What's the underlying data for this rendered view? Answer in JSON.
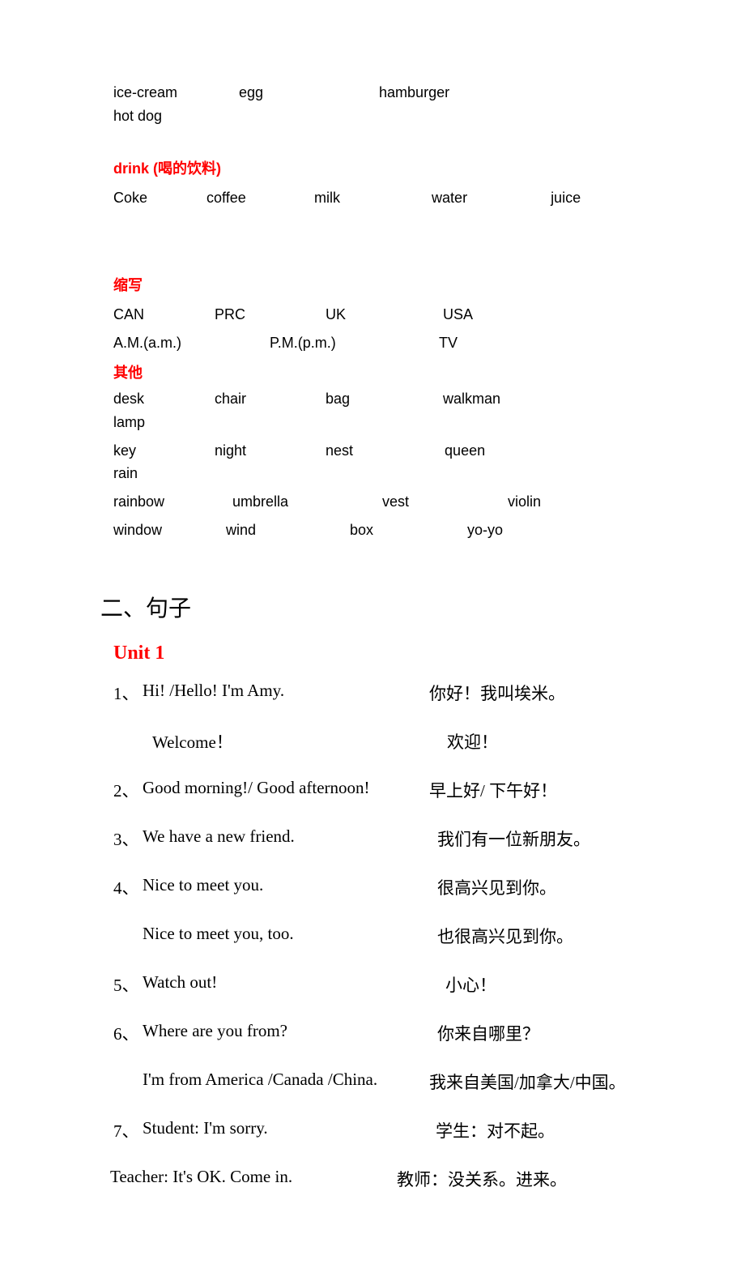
{
  "vocab": {
    "row1": [
      "ice-cream",
      "egg",
      "hamburger",
      "hot dog"
    ],
    "drink_label": "drink  (喝的饮料)",
    "drink_row": [
      "Coke",
      "coffee",
      "milk",
      "water",
      "juice"
    ],
    "abbrev_label": "缩写",
    "abbrev_row1": [
      "CAN",
      "PRC",
      "UK",
      "USA"
    ],
    "abbrev_row2": [
      "A.M.(a.m.)",
      "P.M.(p.m.)",
      "TV"
    ],
    "other_label": "其他",
    "other_row1": [
      "desk",
      "chair",
      "bag",
      "walkman",
      "lamp"
    ],
    "other_row2": [
      "key",
      "night",
      "nest",
      "queen",
      "rain"
    ],
    "other_row3": [
      "rainbow",
      "umbrella",
      "vest",
      "violin"
    ],
    "other_row4": [
      "window",
      "wind",
      "box",
      "yo-yo"
    ]
  },
  "heading_main": "二、句子",
  "unit_label": "Unit 1",
  "sentences": [
    {
      "num": "1、",
      "en": "Hi! /Hello! I'm  Amy.",
      "zh": "你好！我叫埃米。"
    },
    {
      "num": "",
      "en": "Welcome！",
      "zh": "欢迎！",
      "en_pad": 12,
      "zh_pad": 10
    },
    {
      "num": "2、",
      "en": "Good morning!/   Good afternoon!",
      "zh": "早上好/   下午好！"
    },
    {
      "num": "3、",
      "en": "We have a new friend.",
      "zh": "我们有一位新朋友。",
      "zh_pad": 10
    },
    {
      "num": "4、",
      "en": "Nice to meet you.",
      "zh": "很高兴见到你。",
      "zh_pad": 10
    },
    {
      "num": "",
      "en": "Nice to meet you, too.",
      "zh": "也很高兴见到你。",
      "zh_pad": 10
    },
    {
      "num": "5、",
      "en": "Watch out!",
      "zh": "小心！",
      "zh_pad": 20
    },
    {
      "num": "6、",
      "en": "Where are you from?",
      "zh": "你来自哪里？",
      "zh_pad": 10
    },
    {
      "num": "",
      "en": "I'm from America /Canada /China.",
      "zh": "我来自美国/加拿大/中国。"
    },
    {
      "num": "7、",
      "en": "Student:   I'm sorry.",
      "zh": "学生：对不起。",
      "zh_pad": 8
    },
    {
      "num": "",
      "en": "Teacher:   It's OK. Come in.",
      "zh": "教师：没关系。进来。",
      "num_shift": -20,
      "en_shift": -20
    }
  ],
  "layout": {
    "row1_widths": [
      150,
      168,
      200,
      120
    ],
    "drink_widths": [
      110,
      128,
      140,
      142,
      80
    ],
    "abbrev1_widths": [
      120,
      132,
      140,
      80
    ],
    "abbrev2_widths": [
      188,
      204,
      60
    ],
    "other1_widths": [
      120,
      132,
      140,
      168,
      70
    ],
    "other2_widths": [
      120,
      132,
      142,
      166,
      70
    ],
    "other3_widths": [
      142,
      180,
      150,
      80
    ],
    "other4_widths": [
      134,
      148,
      140,
      80
    ]
  }
}
